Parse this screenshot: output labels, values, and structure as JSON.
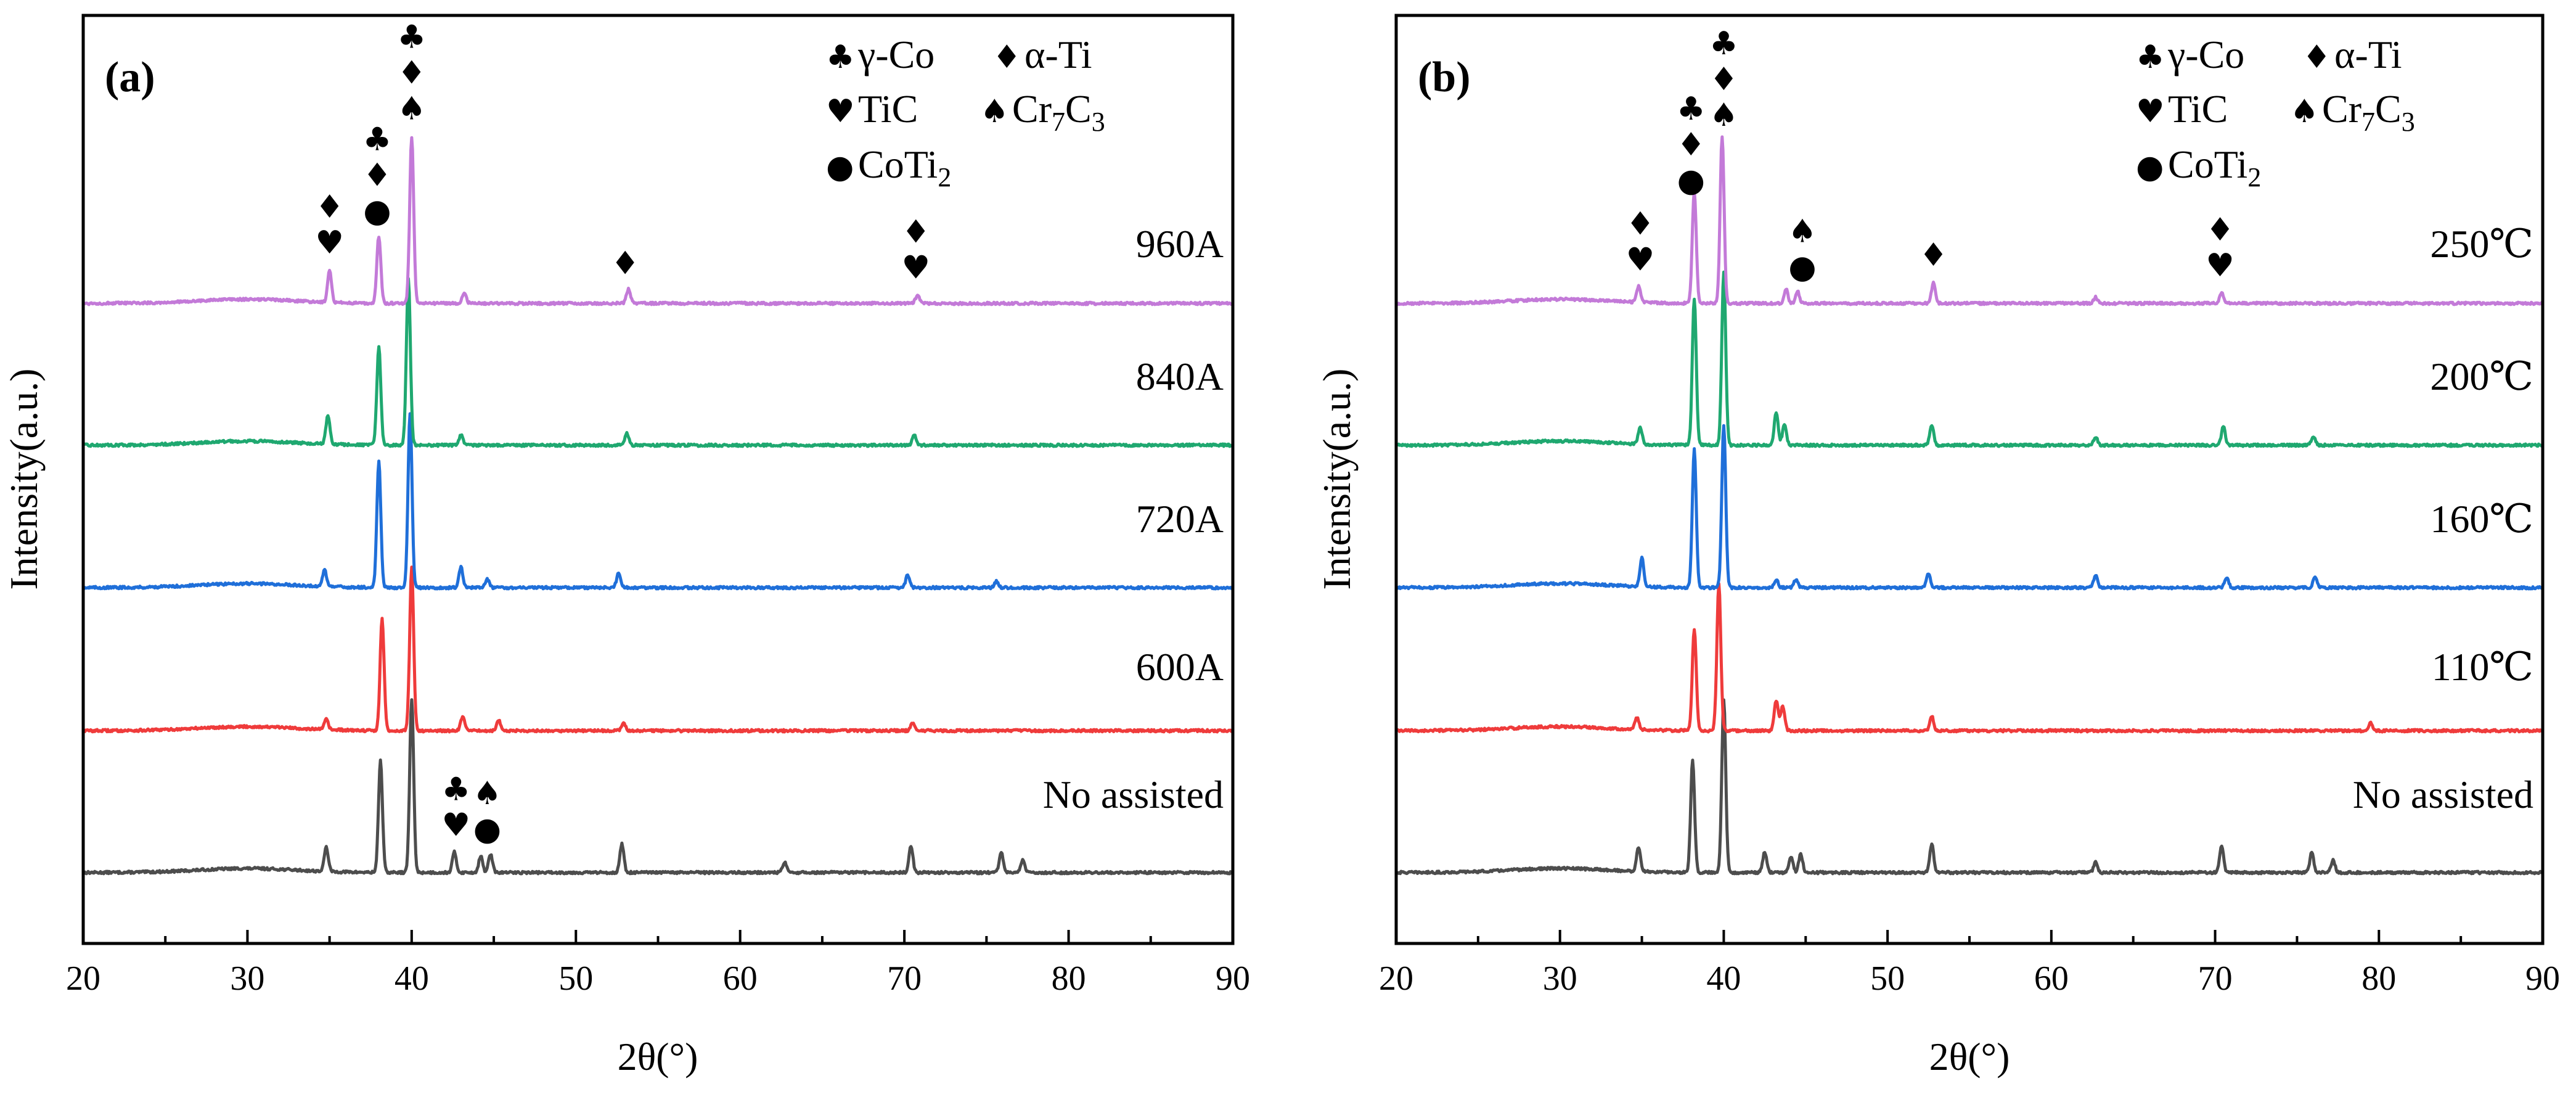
{
  "colors": {
    "axis": "#000000",
    "background": "#ffffff"
  },
  "legend_symbols": {
    "gamma_co": "♣",
    "alpha_ti": "♦",
    "tic": "♥",
    "cr7c3": "♠",
    "coti2": "●"
  },
  "legend_labels": {
    "gamma_co": "γ-Co",
    "alpha_ti": "α-Ti",
    "tic": "TiC",
    "cr7c3_base1": "Cr",
    "cr7c3_sub1": "7",
    "cr7c3_base2": "C",
    "cr7c3_sub2": "3",
    "coti2_base": "CoTi",
    "coti2_sub": "2"
  },
  "chart_data": [
    {
      "type": "line",
      "panel_label": "(a)",
      "xlabel": "2θ(°)",
      "ylabel": "Intensity(a.u.)",
      "xlim": [
        20,
        90
      ],
      "xticks": [
        20,
        30,
        40,
        50,
        60,
        70,
        80,
        90
      ],
      "legend_position": "top-right",
      "series": [
        {
          "name": "No assisted",
          "color": "#4d4d4d",
          "peaks": [
            [
              34.8,
              0.12
            ],
            [
              38.1,
              0.55
            ],
            [
              40.0,
              0.85
            ],
            [
              42.6,
              0.1
            ],
            [
              44.2,
              0.08
            ],
            [
              44.8,
              0.09
            ],
            [
              52.8,
              0.14
            ],
            [
              62.7,
              0.05
            ],
            [
              70.4,
              0.13
            ],
            [
              75.9,
              0.1
            ],
            [
              77.2,
              0.06
            ]
          ]
        },
        {
          "name": "600A",
          "color": "#ef3b3b",
          "peaks": [
            [
              34.8,
              0.05
            ],
            [
              38.2,
              0.55
            ],
            [
              40.0,
              0.8
            ],
            [
              43.1,
              0.07
            ],
            [
              45.3,
              0.05
            ],
            [
              52.9,
              0.04
            ],
            [
              70.5,
              0.04
            ]
          ]
        },
        {
          "name": "720A",
          "color": "#1f6fd9",
          "peaks": [
            [
              34.7,
              0.08
            ],
            [
              38.0,
              0.62
            ],
            [
              39.9,
              0.86
            ],
            [
              43.0,
              0.1
            ],
            [
              44.6,
              0.04
            ],
            [
              52.6,
              0.07
            ],
            [
              70.2,
              0.06
            ],
            [
              75.6,
              0.03
            ]
          ]
        },
        {
          "name": "840A",
          "color": "#1fa870",
          "peaks": [
            [
              34.9,
              0.14
            ],
            [
              38.0,
              0.48
            ],
            [
              39.8,
              0.82
            ],
            [
              43.0,
              0.05
            ],
            [
              53.1,
              0.06
            ],
            [
              70.6,
              0.05
            ]
          ]
        },
        {
          "name": "960A",
          "color": "#c37ad8",
          "peaks": [
            [
              35.0,
              0.16
            ],
            [
              38.0,
              0.33
            ],
            [
              40.0,
              0.82
            ],
            [
              43.2,
              0.05
            ],
            [
              53.2,
              0.07
            ],
            [
              70.8,
              0.04
            ]
          ]
        }
      ],
      "annotations": [
        {
          "x": 42.7,
          "markers": [
            "♥",
            "♣"
          ]
        },
        {
          "x": 44.6,
          "markers": [
            "●",
            "♠"
          ]
        },
        {
          "x": 35.0,
          "markers": [
            "♥",
            "♦"
          ]
        },
        {
          "x": 37.9,
          "markers": [
            "●",
            "♦",
            "♣"
          ]
        },
        {
          "x": 40.0,
          "markers": [
            "♠",
            "♦",
            "♣"
          ]
        },
        {
          "x": 53.0,
          "markers": [
            "♦"
          ]
        },
        {
          "x": 70.7,
          "markers": [
            "♥",
            "♦"
          ]
        }
      ]
    },
    {
      "type": "line",
      "panel_label": "(b)",
      "xlabel": "2θ(°)",
      "ylabel": "Intensity(a.u.)",
      "xlim": [
        20,
        90
      ],
      "xticks": [
        20,
        30,
        40,
        50,
        60,
        70,
        80,
        90
      ],
      "legend_position": "top-right",
      "series": [
        {
          "name": "No assisted",
          "color": "#4d4d4d",
          "peaks": [
            [
              34.8,
              0.12
            ],
            [
              38.1,
              0.55
            ],
            [
              40.0,
              0.85
            ],
            [
              42.5,
              0.1
            ],
            [
              44.1,
              0.08
            ],
            [
              44.7,
              0.09
            ],
            [
              52.7,
              0.14
            ],
            [
              62.7,
              0.05
            ],
            [
              70.4,
              0.13
            ],
            [
              75.9,
              0.1
            ],
            [
              77.2,
              0.06
            ]
          ]
        },
        {
          "name": "110℃",
          "color": "#ef3b3b",
          "peaks": [
            [
              34.7,
              0.06
            ],
            [
              38.2,
              0.5
            ],
            [
              39.7,
              0.72
            ],
            [
              43.2,
              0.15
            ],
            [
              43.6,
              0.12
            ],
            [
              52.7,
              0.07
            ],
            [
              79.5,
              0.04
            ]
          ]
        },
        {
          "name": "160℃",
          "color": "#1f6fd9",
          "peaks": [
            [
              35.0,
              0.14
            ],
            [
              38.2,
              0.68
            ],
            [
              40.0,
              0.8
            ],
            [
              43.2,
              0.04
            ],
            [
              44.4,
              0.04
            ],
            [
              52.5,
              0.07
            ],
            [
              62.7,
              0.06
            ],
            [
              70.7,
              0.05
            ],
            [
              76.1,
              0.05
            ]
          ]
        },
        {
          "name": "200℃",
          "color": "#1fa870",
          "peaks": [
            [
              34.9,
              0.08
            ],
            [
              38.2,
              0.72
            ],
            [
              40.0,
              0.85
            ],
            [
              43.2,
              0.16
            ],
            [
              43.7,
              0.1
            ],
            [
              52.7,
              0.1
            ],
            [
              62.7,
              0.04
            ],
            [
              70.5,
              0.09
            ],
            [
              76.0,
              0.04
            ]
          ]
        },
        {
          "name": "250℃",
          "color": "#c37ad8",
          "peaks": [
            [
              34.8,
              0.08
            ],
            [
              38.2,
              0.55
            ],
            [
              39.9,
              0.82
            ],
            [
              43.8,
              0.07
            ],
            [
              44.5,
              0.06
            ],
            [
              52.8,
              0.1
            ],
            [
              62.7,
              0.03
            ],
            [
              70.4,
              0.05
            ]
          ]
        }
      ],
      "annotations": [
        {
          "x": 34.9,
          "markers": [
            "♥",
            "♦"
          ]
        },
        {
          "x": 38.0,
          "markers": [
            "●",
            "♦",
            "♣"
          ]
        },
        {
          "x": 40.0,
          "markers": [
            "♠",
            "♦",
            "♣"
          ]
        },
        {
          "x": 44.8,
          "markers": [
            "●",
            "♠"
          ]
        },
        {
          "x": 52.8,
          "markers": [
            "♦"
          ]
        },
        {
          "x": 70.3,
          "markers": [
            "♥",
            "♦"
          ]
        }
      ]
    }
  ]
}
